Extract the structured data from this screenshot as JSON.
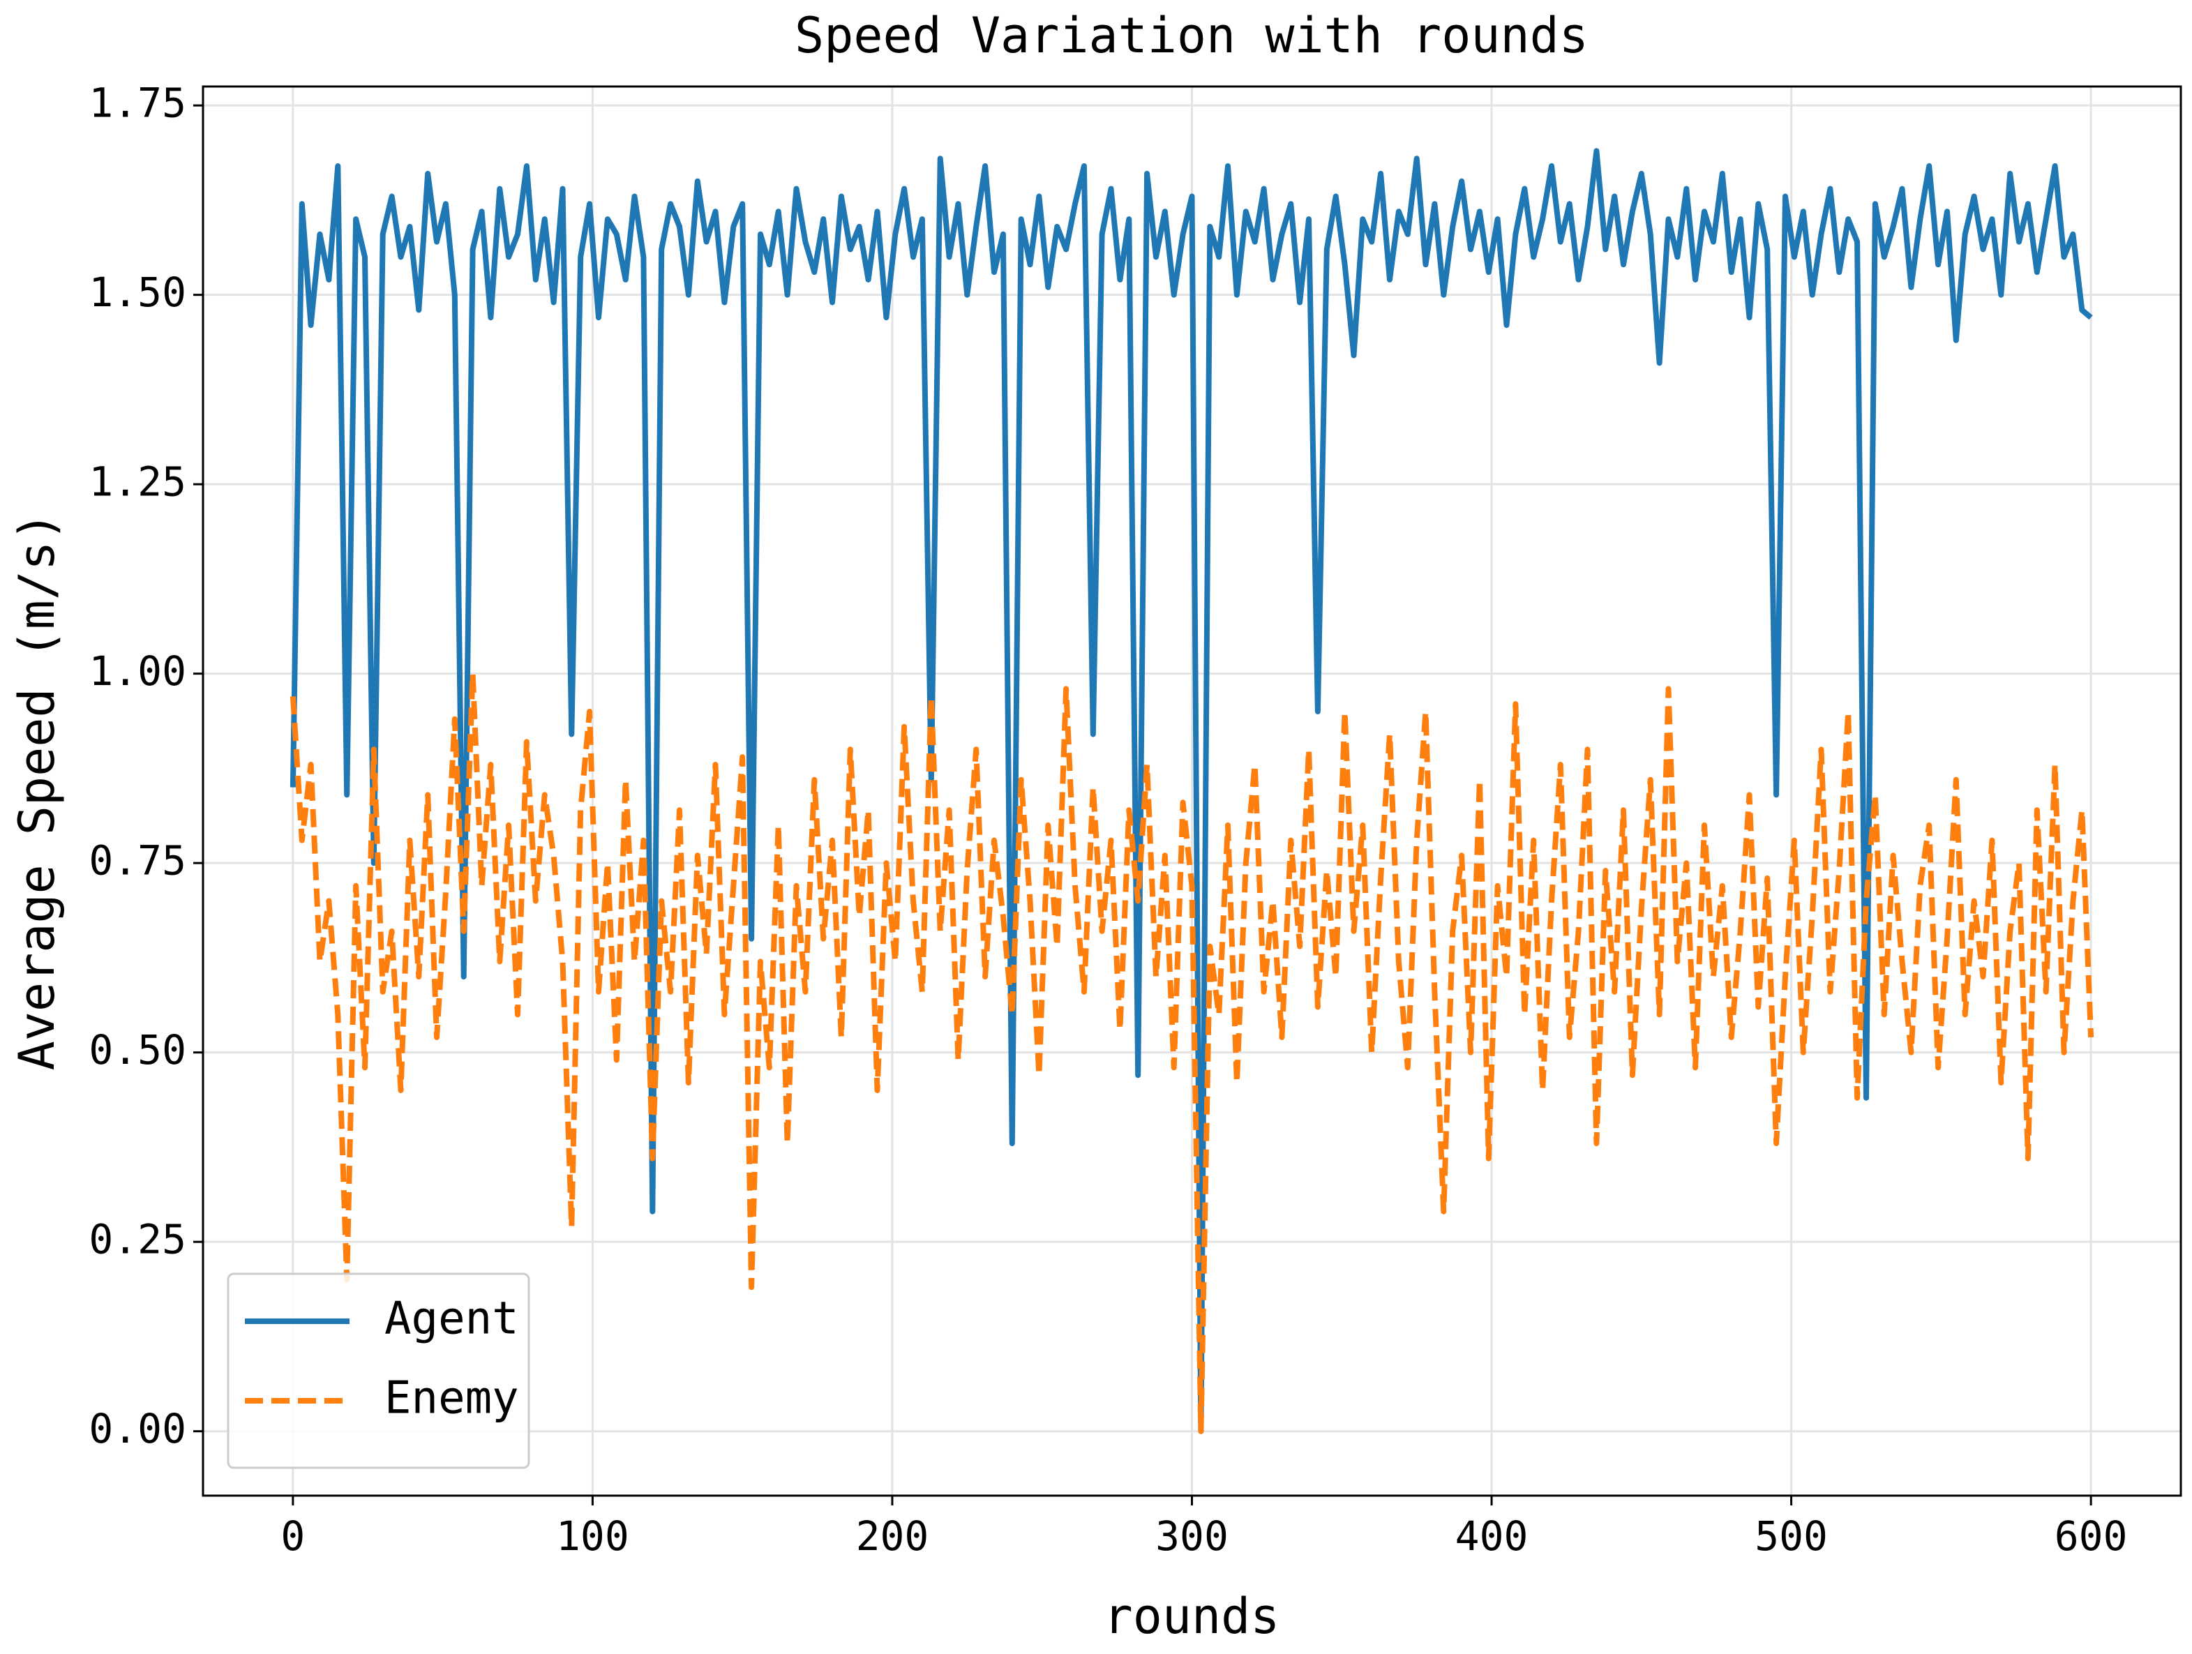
{
  "chart_data": {
    "type": "line",
    "title": "Speed Variation with rounds",
    "xlabel": "rounds",
    "ylabel": "Average Speed (m/s)",
    "xlim": [
      -30,
      630
    ],
    "ylim": [
      -0.085,
      1.775
    ],
    "xticks": [
      0,
      100,
      200,
      300,
      400,
      500,
      600
    ],
    "yticks": [
      {
        "value": 0,
        "label": "0.00"
      },
      0.25,
      {
        "value": 0.5,
        "label": "0.50"
      },
      0.75,
      {
        "value": 1,
        "label": "1.00"
      },
      1.25,
      {
        "value": 1.5,
        "label": "1.50"
      },
      1.75
    ],
    "grid": true,
    "legend": "lower left",
    "x": [
      0,
      3,
      6,
      9,
      12,
      15,
      18,
      21,
      24,
      27,
      30,
      33,
      36,
      39,
      42,
      45,
      48,
      51,
      54,
      57,
      60,
      63,
      66,
      69,
      72,
      75,
      78,
      81,
      84,
      87,
      90,
      93,
      96,
      99,
      102,
      105,
      108,
      111,
      114,
      117,
      120,
      123,
      126,
      129,
      132,
      135,
      138,
      141,
      144,
      147,
      150,
      153,
      156,
      159,
      162,
      165,
      168,
      171,
      174,
      177,
      180,
      183,
      186,
      189,
      192,
      195,
      198,
      201,
      204,
      207,
      210,
      213,
      216,
      219,
      222,
      225,
      228,
      231,
      234,
      237,
      240,
      243,
      246,
      249,
      252,
      255,
      258,
      261,
      264,
      267,
      270,
      273,
      276,
      279,
      282,
      285,
      288,
      291,
      294,
      297,
      300,
      303,
      306,
      309,
      312,
      315,
      318,
      321,
      324,
      327,
      330,
      333,
      336,
      339,
      342,
      345,
      348,
      351,
      354,
      357,
      360,
      363,
      366,
      369,
      372,
      375,
      378,
      381,
      384,
      387,
      390,
      393,
      396,
      399,
      402,
      405,
      408,
      411,
      414,
      417,
      420,
      423,
      426,
      429,
      432,
      435,
      438,
      441,
      444,
      447,
      450,
      453,
      456,
      459,
      462,
      465,
      468,
      471,
      474,
      477,
      480,
      483,
      486,
      489,
      492,
      495,
      498,
      501,
      504,
      507,
      510,
      513,
      516,
      519,
      522,
      525,
      528,
      531,
      534,
      537,
      540,
      543,
      546,
      549,
      552,
      555,
      558,
      561,
      564,
      567,
      570,
      573,
      576,
      579,
      582,
      585,
      588,
      591,
      594,
      597,
      600
    ],
    "series": [
      {
        "name": "Agent",
        "color": "#1f77b4",
        "dashed": false,
        "values": [
          0.85,
          1.62,
          1.46,
          1.58,
          1.52,
          1.67,
          0.84,
          1.6,
          1.55,
          0.75,
          1.58,
          1.63,
          1.55,
          1.59,
          1.48,
          1.66,
          1.57,
          1.62,
          1.5,
          0.6,
          1.56,
          1.61,
          1.47,
          1.64,
          1.55,
          1.58,
          1.67,
          1.52,
          1.6,
          1.49,
          1.64,
          0.92,
          1.55,
          1.62,
          1.47,
          1.6,
          1.58,
          1.52,
          1.63,
          1.55,
          0.29,
          1.56,
          1.62,
          1.59,
          1.5,
          1.65,
          1.57,
          1.61,
          1.49,
          1.59,
          1.62,
          0.65,
          1.58,
          1.54,
          1.61,
          1.5,
          1.64,
          1.57,
          1.53,
          1.6,
          1.49,
          1.63,
          1.56,
          1.59,
          1.52,
          1.61,
          1.47,
          1.58,
          1.64,
          1.55,
          1.6,
          0.86,
          1.68,
          1.55,
          1.62,
          1.5,
          1.59,
          1.67,
          1.53,
          1.58,
          0.38,
          1.6,
          1.54,
          1.63,
          1.51,
          1.59,
          1.56,
          1.62,
          1.67,
          0.92,
          1.58,
          1.64,
          1.52,
          1.6,
          0.47,
          1.66,
          1.55,
          1.61,
          1.5,
          1.58,
          1.63,
          0.0,
          1.59,
          1.55,
          1.67,
          1.5,
          1.61,
          1.57,
          1.64,
          1.52,
          1.58,
          1.62,
          1.49,
          1.6,
          0.95,
          1.56,
          1.63,
          1.54,
          1.42,
          1.6,
          1.57,
          1.66,
          1.52,
          1.61,
          1.58,
          1.68,
          1.54,
          1.62,
          1.5,
          1.59,
          1.65,
          1.56,
          1.61,
          1.53,
          1.6,
          1.46,
          1.58,
          1.64,
          1.55,
          1.6,
          1.67,
          1.57,
          1.62,
          1.52,
          1.59,
          1.69,
          1.56,
          1.63,
          1.54,
          1.61,
          1.66,
          1.58,
          1.41,
          1.6,
          1.55,
          1.64,
          1.52,
          1.61,
          1.57,
          1.66,
          1.53,
          1.6,
          1.47,
          1.62,
          1.56,
          0.84,
          1.63,
          1.55,
          1.61,
          1.5,
          1.58,
          1.64,
          1.53,
          1.6,
          1.57,
          0.44,
          1.62,
          1.55,
          1.59,
          1.64,
          1.51,
          1.6,
          1.67,
          1.54,
          1.61,
          1.44,
          1.58,
          1.63,
          1.56,
          1.6,
          1.5,
          1.66,
          1.57,
          1.62,
          1.53,
          1.6,
          1.67,
          1.55,
          1.58,
          1.48,
          1.47
        ]
      },
      {
        "name": "Enemy",
        "color": "#ff7f0e",
        "dashed": true,
        "values": [
          0.97,
          0.78,
          0.88,
          0.62,
          0.7,
          0.55,
          0.2,
          0.72,
          0.48,
          0.9,
          0.58,
          0.66,
          0.45,
          0.78,
          0.6,
          0.84,
          0.52,
          0.71,
          0.94,
          0.66,
          1.0,
          0.72,
          0.88,
          0.62,
          0.8,
          0.55,
          0.91,
          0.7,
          0.84,
          0.76,
          0.62,
          0.27,
          0.82,
          0.95,
          0.58,
          0.75,
          0.49,
          0.86,
          0.62,
          0.78,
          0.36,
          0.7,
          0.58,
          0.82,
          0.46,
          0.76,
          0.63,
          0.88,
          0.55,
          0.72,
          0.89,
          0.19,
          0.62,
          0.48,
          0.8,
          0.38,
          0.72,
          0.58,
          0.86,
          0.65,
          0.78,
          0.52,
          0.9,
          0.68,
          0.82,
          0.45,
          0.75,
          0.62,
          0.93,
          0.7,
          0.58,
          0.97,
          0.66,
          0.82,
          0.49,
          0.74,
          0.9,
          0.6,
          0.78,
          0.68,
          0.55,
          0.86,
          0.7,
          0.47,
          0.8,
          0.64,
          0.98,
          0.72,
          0.58,
          0.85,
          0.66,
          0.78,
          0.53,
          0.82,
          0.7,
          0.88,
          0.6,
          0.76,
          0.48,
          0.83,
          0.72,
          0.0,
          0.64,
          0.55,
          0.8,
          0.46,
          0.75,
          0.88,
          0.58,
          0.7,
          0.52,
          0.78,
          0.64,
          0.9,
          0.56,
          0.74,
          0.6,
          0.95,
          0.66,
          0.8,
          0.5,
          0.73,
          0.92,
          0.62,
          0.48,
          0.78,
          0.95,
          0.58,
          0.29,
          0.66,
          0.76,
          0.5,
          0.86,
          0.36,
          0.72,
          0.6,
          0.96,
          0.55,
          0.78,
          0.45,
          0.7,
          0.88,
          0.52,
          0.66,
          0.9,
          0.38,
          0.74,
          0.58,
          0.82,
          0.47,
          0.69,
          0.86,
          0.55,
          0.98,
          0.62,
          0.75,
          0.48,
          0.8,
          0.6,
          0.72,
          0.52,
          0.66,
          0.84,
          0.56,
          0.73,
          0.38,
          0.6,
          0.78,
          0.5,
          0.68,
          0.9,
          0.58,
          0.74,
          0.95,
          0.44,
          0.7,
          0.84,
          0.55,
          0.76,
          0.62,
          0.5,
          0.72,
          0.8,
          0.48,
          0.65,
          0.86,
          0.55,
          0.7,
          0.6,
          0.78,
          0.46,
          0.66,
          0.75,
          0.36,
          0.82,
          0.58,
          0.88,
          0.5,
          0.7,
          0.82,
          0.52
        ]
      }
    ]
  }
}
